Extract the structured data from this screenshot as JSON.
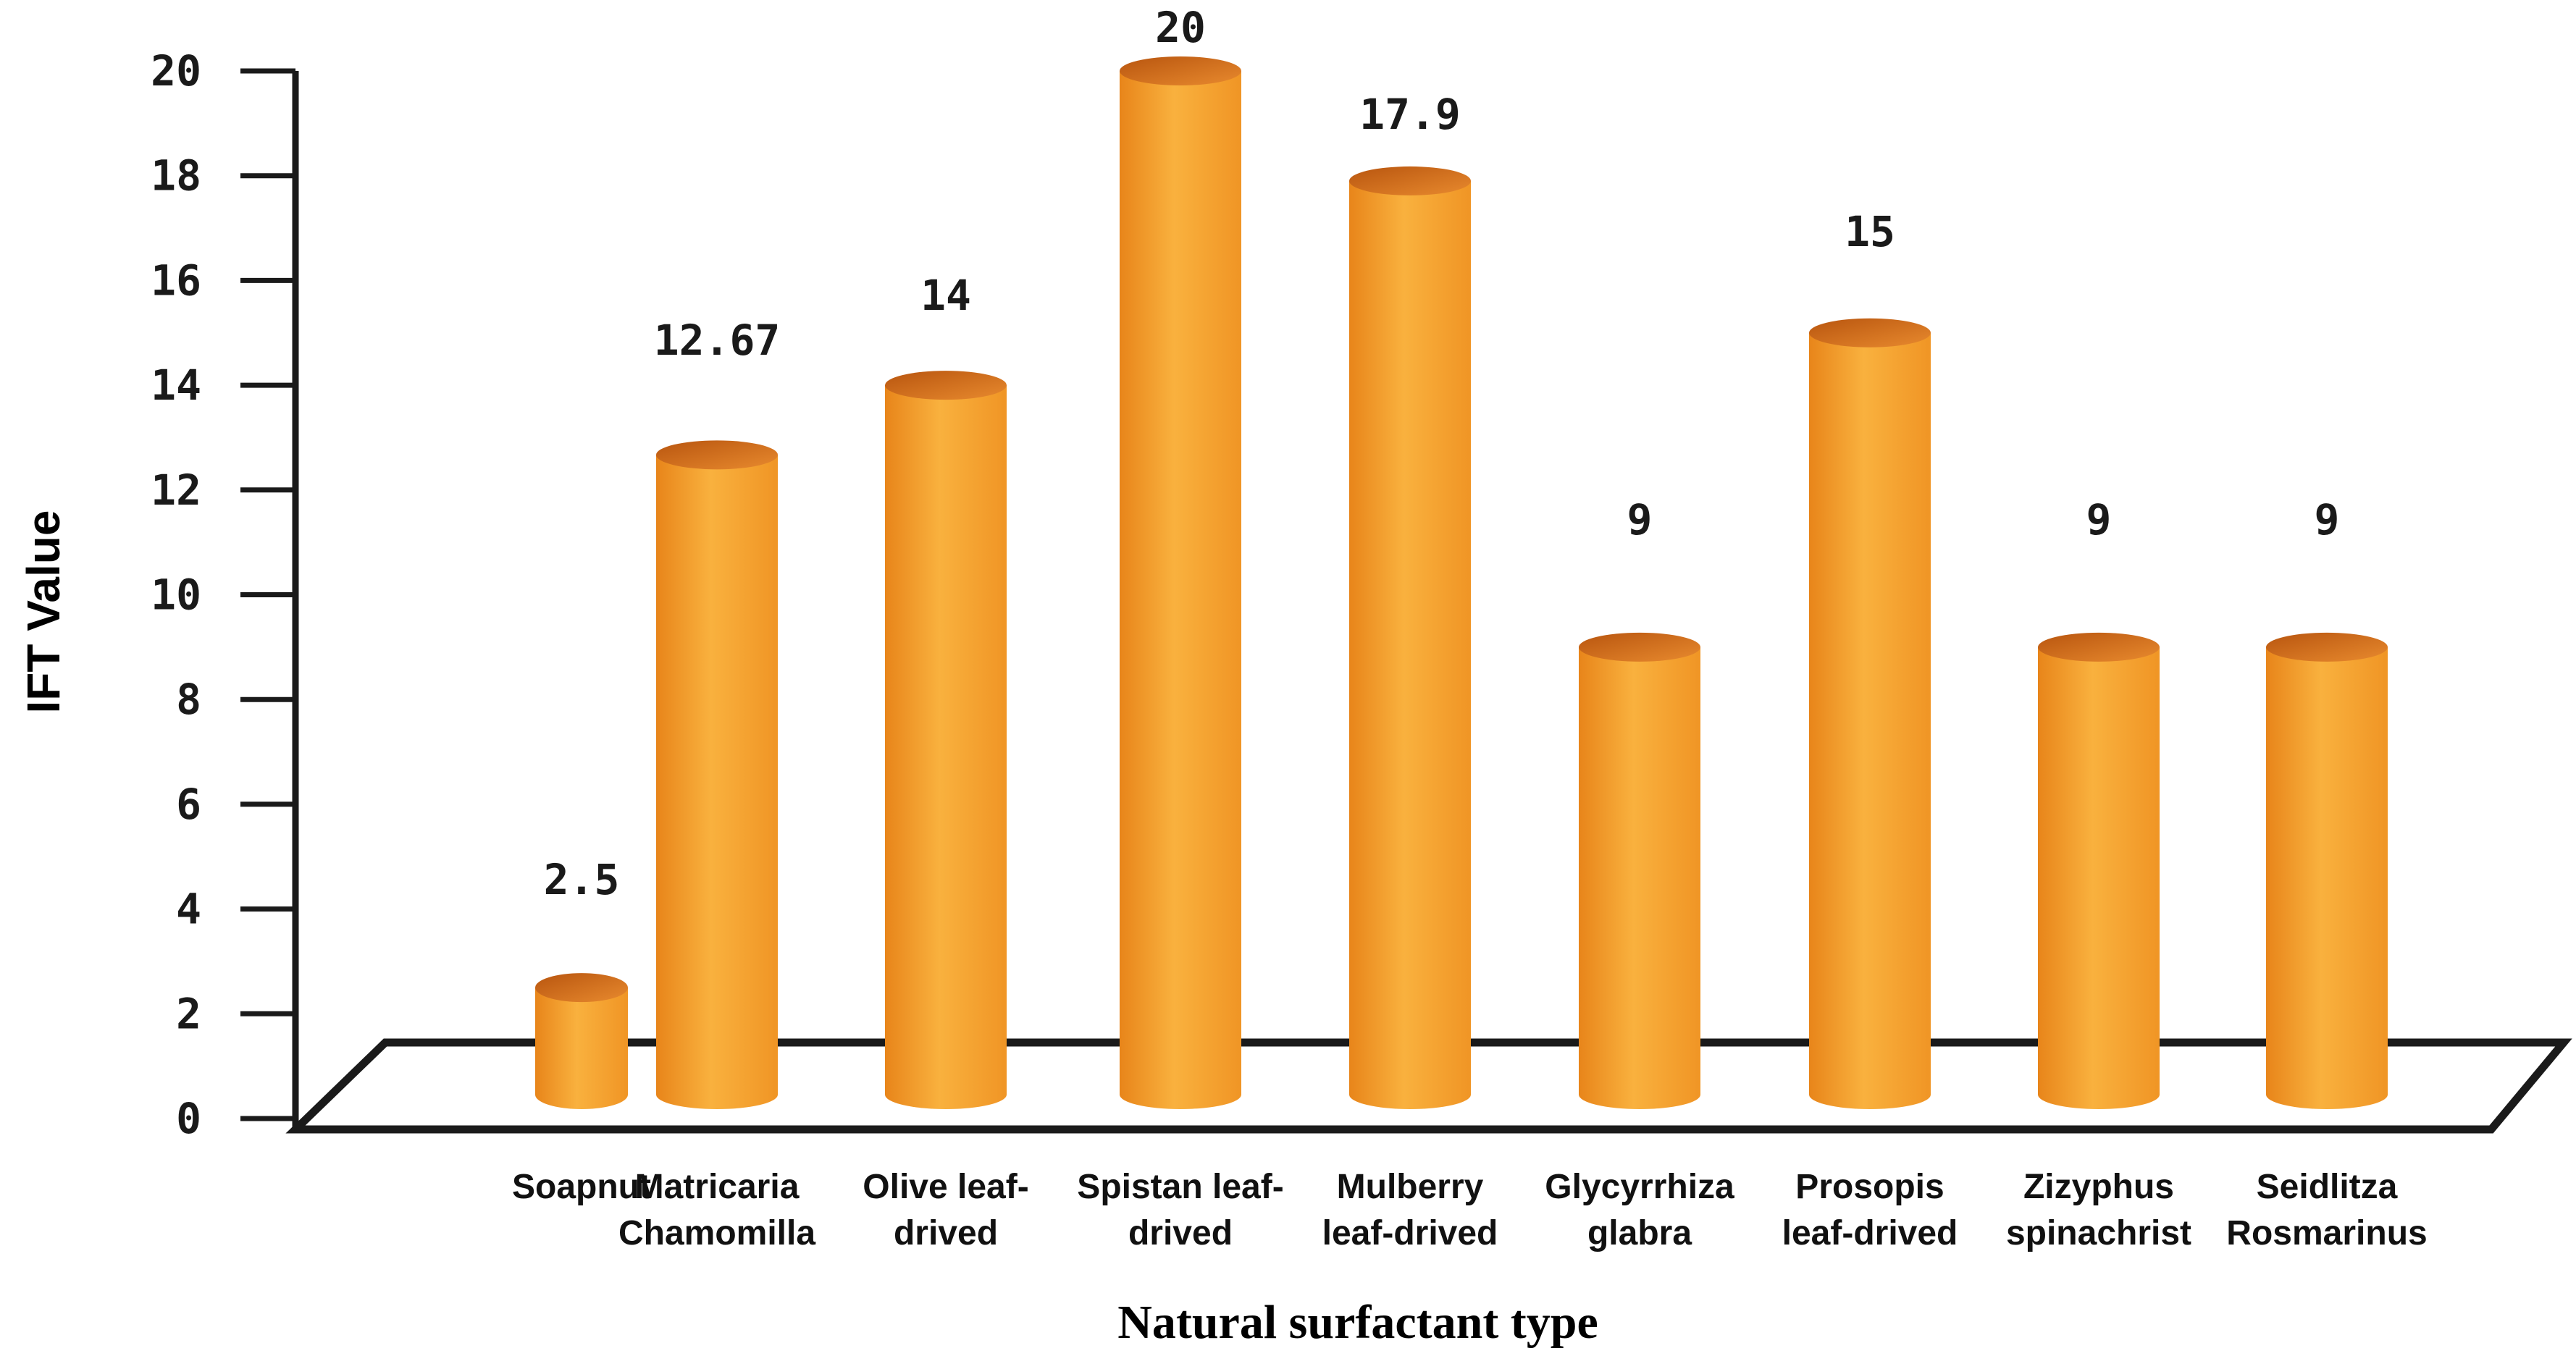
{
  "chart_data": {
    "type": "bar",
    "style": "3d-cylinder",
    "title": "",
    "xlabel": "Natural surfactant type",
    "ylabel": "IFT Value",
    "ylim": [
      0,
      20
    ],
    "yticks": [
      "0",
      "2",
      "4",
      "6",
      "8",
      "10",
      "12",
      "14",
      "16",
      "18",
      "20"
    ],
    "grid": false,
    "legend": "none",
    "categories": [
      [
        "Soapnut"
      ],
      [
        "Matricaria",
        "Chamomilla"
      ],
      [
        "Olive leaf-",
        "drived"
      ],
      [
        "Spistan leaf-",
        "drived"
      ],
      [
        "Mulberry",
        "leaf-drived"
      ],
      [
        "Glycyrrhiza",
        "glabra"
      ],
      [
        "Prosopis",
        "leaf-drived"
      ],
      [
        "Zizyphus",
        "spinachrist"
      ],
      [
        "Seidlitza",
        "Rosmarinus"
      ]
    ],
    "values": [
      2.5,
      12.67,
      14,
      20,
      17.9,
      9,
      15,
      9,
      9
    ],
    "value_labels": [
      "2.5",
      "12.67",
      "14",
      "20",
      "17.9",
      "9",
      "15",
      "9",
      "9"
    ],
    "colors": {
      "bar_left": "#e8851a",
      "bar_mid": "#f9b13e",
      "bar_right": "#f09525",
      "bar_top": "#c85f14",
      "bar_top_light": "#e88a2e",
      "axis": "#1a1a1a"
    }
  }
}
